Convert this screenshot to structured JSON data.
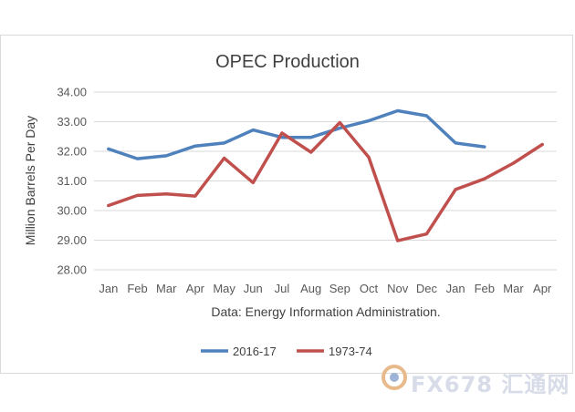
{
  "chart_data": {
    "type": "line",
    "title": "OPEC Production",
    "ylabel": "Million Barrels Per Day",
    "xlabel": "Data: Energy Information Administration.",
    "categories": [
      "Jan",
      "Feb",
      "Mar",
      "Apr",
      "May",
      "Jun",
      "Jul",
      "Aug",
      "Sep",
      "Oct",
      "Nov",
      "Dec",
      "Jan",
      "Feb",
      "Mar",
      "Apr"
    ],
    "ylim": [
      28.0,
      34.0
    ],
    "yticks": [
      "34.00",
      "33.00",
      "32.00",
      "31.00",
      "30.00",
      "29.00",
      "28.00"
    ],
    "grid": true,
    "legend_position": "bottom",
    "series": [
      {
        "name": "2016-17",
        "color": "#4f81bd",
        "values": [
          32.08,
          31.75,
          31.85,
          32.18,
          32.28,
          32.72,
          32.47,
          32.47,
          32.78,
          33.03,
          33.37,
          33.2,
          32.28,
          32.15,
          null,
          null
        ]
      },
      {
        "name": "1973-74",
        "color": "#c0504d",
        "values": [
          30.17,
          30.51,
          30.56,
          30.49,
          31.77,
          30.94,
          32.62,
          31.97,
          32.97,
          31.8,
          28.98,
          29.21,
          30.71,
          31.07,
          31.6,
          32.23
        ]
      }
    ]
  },
  "watermark": {
    "text": "FX678 汇通网"
  }
}
